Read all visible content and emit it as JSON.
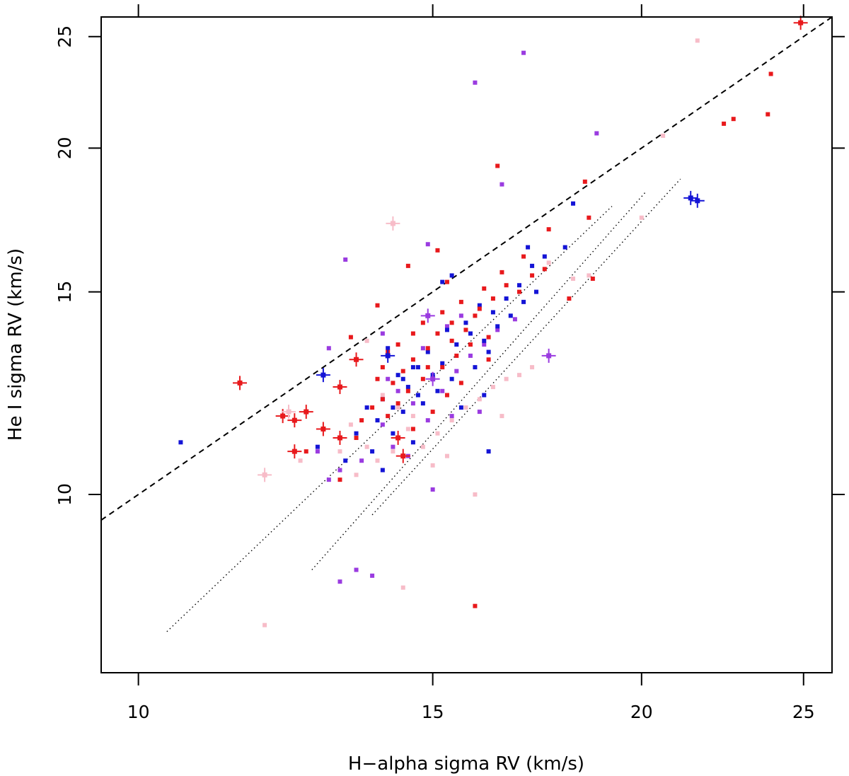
{
  "chart_data": {
    "type": "scatter",
    "xlabel": "H−alpha sigma RV (km/s)",
    "ylabel": "He I sigma RV (km/s)",
    "x_scale": "log",
    "y_scale": "log",
    "xlim": [
      9.5,
      26
    ],
    "ylim": [
      7.0,
      26
    ],
    "x_ticks": [
      10,
      15,
      20,
      25
    ],
    "y_ticks": [
      10,
      15,
      20,
      25
    ],
    "x_tick_labels": [
      "10",
      "15",
      "20",
      "25"
    ],
    "y_tick_labels": [
      "10",
      "15",
      "20",
      "25"
    ],
    "grid": false,
    "colors": {
      "red": "#e8191c",
      "blue": "#1414d6",
      "purple": "#9a3be0",
      "pink": "#f7bcc8",
      "line": "#000000"
    },
    "reference_lines": [
      {
        "name": "one-to-one",
        "style": "dashed",
        "from": [
          9.5,
          9.5
        ],
        "to": [
          26,
          26
        ]
      },
      {
        "name": "lower-1",
        "style": "dotted",
        "from": [
          10.4,
          7.6
        ],
        "to": [
          19.2,
          17.8
        ]
      },
      {
        "name": "lower-2",
        "style": "dotted",
        "from": [
          12.7,
          8.6
        ],
        "to": [
          20.1,
          18.3
        ]
      },
      {
        "name": "lower-3",
        "style": "dotted",
        "from": [
          13.8,
          9.6
        ],
        "to": [
          21.1,
          18.8
        ]
      }
    ],
    "series": [
      {
        "name": "red",
        "color": "#e8191c",
        "points": [
          [
            13.9,
            14.6
          ],
          [
            14.1,
            13.3
          ],
          [
            14.3,
            13.5
          ],
          [
            14.6,
            13.8
          ],
          [
            14.8,
            14.1
          ],
          [
            15.2,
            14.4
          ],
          [
            15.6,
            14.7
          ],
          [
            16.1,
            15.1
          ],
          [
            16.5,
            15.6
          ],
          [
            17.0,
            16.1
          ],
          [
            17.6,
            17.0
          ],
          [
            18.6,
            17.4
          ],
          [
            18.5,
            18.7
          ],
          [
            16.4,
            19.3
          ],
          [
            15.1,
            16.3
          ],
          [
            14.5,
            15.8
          ],
          [
            15.3,
            15.3
          ],
          [
            13.4,
            13.7
          ],
          [
            13.9,
            12.6
          ],
          [
            14.0,
            12.9
          ],
          [
            14.2,
            12.5
          ],
          [
            14.4,
            12.8
          ],
          [
            14.6,
            13.1
          ],
          [
            14.9,
            13.4
          ],
          [
            15.1,
            13.8
          ],
          [
            15.4,
            13.6
          ],
          [
            15.7,
            13.9
          ],
          [
            15.9,
            14.3
          ],
          [
            16.3,
            14.8
          ],
          [
            16.6,
            15.2
          ],
          [
            16.9,
            15.0
          ],
          [
            17.2,
            15.5
          ],
          [
            17.5,
            15.7
          ],
          [
            18.1,
            14.8
          ],
          [
            18.7,
            15.4
          ],
          [
            22.4,
            21.0
          ],
          [
            22.7,
            21.2
          ],
          [
            23.8,
            21.4
          ],
          [
            23.9,
            23.2
          ],
          [
            14.0,
            12.1
          ],
          [
            14.3,
            12.0
          ],
          [
            14.5,
            12.3
          ],
          [
            14.8,
            12.6
          ],
          [
            15.2,
            12.9
          ],
          [
            15.5,
            13.2
          ],
          [
            15.8,
            13.5
          ],
          [
            16.2,
            13.7
          ],
          [
            13.6,
            11.6
          ],
          [
            13.8,
            11.9
          ],
          [
            14.1,
            11.7
          ],
          [
            14.6,
            11.4
          ],
          [
            15.0,
            11.8
          ],
          [
            15.3,
            12.2
          ],
          [
            15.6,
            12.5
          ],
          [
            12.6,
            10.9
          ],
          [
            13.2,
            10.3
          ],
          [
            13.5,
            11.2
          ],
          [
            14.9,
            12.9
          ],
          [
            15.4,
            14.1
          ],
          [
            16.0,
            14.5
          ],
          [
            16.2,
            13.1
          ],
          [
            15.9,
            8.0
          ]
        ]
      },
      {
        "name": "blue",
        "color": "#1414d6",
        "points": [
          [
            14.1,
            13.4
          ],
          [
            14.4,
            12.6
          ],
          [
            14.6,
            12.9
          ],
          [
            14.9,
            13.3
          ],
          [
            15.3,
            13.9
          ],
          [
            15.7,
            14.1
          ],
          [
            16.0,
            14.6
          ],
          [
            16.3,
            14.4
          ],
          [
            16.6,
            14.8
          ],
          [
            16.9,
            15.2
          ],
          [
            17.2,
            15.8
          ],
          [
            17.5,
            16.1
          ],
          [
            18.0,
            16.4
          ],
          [
            18.2,
            17.9
          ],
          [
            14.0,
            12.1
          ],
          [
            14.2,
            11.9
          ],
          [
            14.5,
            12.4
          ],
          [
            14.7,
            12.2
          ],
          [
            15.0,
            12.7
          ],
          [
            15.2,
            13.0
          ],
          [
            15.5,
            13.5
          ],
          [
            15.8,
            13.8
          ],
          [
            16.1,
            13.6
          ],
          [
            16.4,
            14.0
          ],
          [
            16.7,
            14.3
          ],
          [
            17.0,
            14.7
          ],
          [
            17.3,
            15.0
          ],
          [
            13.7,
            11.9
          ],
          [
            13.9,
            11.6
          ],
          [
            14.2,
            11.3
          ],
          [
            14.4,
            11.8
          ],
          [
            14.8,
            12.0
          ],
          [
            15.1,
            12.3
          ],
          [
            15.4,
            12.6
          ],
          [
            15.9,
            12.9
          ],
          [
            16.2,
            13.3
          ],
          [
            13.5,
            11.3
          ],
          [
            13.8,
            10.9
          ],
          [
            14.6,
            11.1
          ],
          [
            15.6,
            11.9
          ],
          [
            16.1,
            12.2
          ],
          [
            17.1,
            16.4
          ],
          [
            15.4,
            15.5
          ],
          [
            15.2,
            15.3
          ],
          [
            12.8,
            11.0
          ],
          [
            13.3,
            10.7
          ],
          [
            14.0,
            10.5
          ],
          [
            16.2,
            10.9
          ],
          [
            14.7,
            12.9
          ],
          [
            14.3,
            12.7
          ],
          [
            10.6,
            11.1
          ]
        ]
      },
      {
        "name": "purple",
        "color": "#9a3be0",
        "points": [
          [
            17.0,
            24.2
          ],
          [
            15.9,
            22.8
          ],
          [
            18.8,
            20.6
          ],
          [
            16.5,
            18.6
          ],
          [
            14.9,
            16.5
          ],
          [
            13.3,
            16.0
          ],
          [
            14.0,
            13.8
          ],
          [
            13.0,
            13.4
          ],
          [
            14.3,
            12.3
          ],
          [
            14.6,
            12.0
          ],
          [
            14.9,
            11.6
          ],
          [
            15.2,
            12.3
          ],
          [
            15.5,
            12.8
          ],
          [
            15.8,
            13.2
          ],
          [
            16.1,
            13.5
          ],
          [
            16.4,
            13.9
          ],
          [
            16.8,
            14.2
          ],
          [
            14.0,
            11.5
          ],
          [
            14.2,
            11.0
          ],
          [
            13.6,
            10.7
          ],
          [
            13.2,
            10.5
          ],
          [
            12.8,
            10.9
          ],
          [
            13.0,
            10.3
          ],
          [
            14.5,
            10.8
          ],
          [
            15.0,
            10.1
          ],
          [
            14.1,
            12.6
          ],
          [
            14.8,
            13.4
          ],
          [
            15.3,
            14.0
          ],
          [
            15.6,
            14.3
          ],
          [
            13.8,
            8.5
          ],
          [
            13.5,
            8.6
          ],
          [
            13.2,
            8.4
          ],
          [
            16.0,
            11.8
          ],
          [
            15.4,
            11.7
          ]
        ]
      },
      {
        "name": "pink",
        "color": "#f7bcc8",
        "points": [
          [
            21.6,
            24.8
          ],
          [
            20.6,
            20.5
          ],
          [
            20.0,
            17.4
          ],
          [
            17.6,
            15.9
          ],
          [
            18.2,
            15.4
          ],
          [
            18.6,
            15.5
          ],
          [
            13.7,
            13.6
          ],
          [
            14.0,
            12.2
          ],
          [
            14.3,
            11.9
          ],
          [
            14.5,
            11.4
          ],
          [
            14.8,
            11.0
          ],
          [
            15.1,
            11.3
          ],
          [
            15.4,
            11.6
          ],
          [
            15.7,
            11.9
          ],
          [
            16.0,
            12.1
          ],
          [
            16.3,
            12.4
          ],
          [
            16.6,
            12.6
          ],
          [
            16.9,
            12.7
          ],
          [
            17.2,
            12.9
          ],
          [
            13.4,
            11.5
          ],
          [
            13.7,
            11.0
          ],
          [
            13.5,
            10.4
          ],
          [
            13.9,
            10.7
          ],
          [
            14.2,
            10.9
          ],
          [
            15.0,
            10.6
          ],
          [
            15.3,
            10.8
          ],
          [
            16.5,
            11.7
          ],
          [
            15.9,
            10.0
          ],
          [
            12.5,
            10.7
          ],
          [
            11.9,
            7.7
          ],
          [
            14.4,
            8.3
          ],
          [
            13.2,
            10.9
          ],
          [
            14.6,
            11.7
          ]
        ]
      }
    ],
    "error_markers": [
      {
        "x": 24.9,
        "y": 25.7,
        "color": "#e8191c"
      },
      {
        "x": 11.5,
        "y": 12.5,
        "color": "#e8191c"
      },
      {
        "x": 12.2,
        "y": 11.7,
        "color": "#e8191c"
      },
      {
        "x": 12.4,
        "y": 11.6,
        "color": "#e8191c"
      },
      {
        "x": 12.6,
        "y": 11.8,
        "color": "#e8191c"
      },
      {
        "x": 12.9,
        "y": 11.4,
        "color": "#e8191c"
      },
      {
        "x": 12.4,
        "y": 10.9,
        "color": "#e8191c"
      },
      {
        "x": 13.2,
        "y": 11.2,
        "color": "#e8191c"
      },
      {
        "x": 13.2,
        "y": 12.4,
        "color": "#e8191c"
      },
      {
        "x": 13.5,
        "y": 13.1,
        "color": "#e8191c"
      },
      {
        "x": 14.3,
        "y": 11.2,
        "color": "#e8191c"
      },
      {
        "x": 14.4,
        "y": 10.8,
        "color": "#e8191c"
      },
      {
        "x": 12.9,
        "y": 12.7,
        "color": "#1414d6"
      },
      {
        "x": 14.1,
        "y": 13.2,
        "color": "#1414d6"
      },
      {
        "x": 21.4,
        "y": 18.1,
        "color": "#1414d6"
      },
      {
        "x": 21.6,
        "y": 18.0,
        "color": "#1414d6"
      },
      {
        "x": 14.9,
        "y": 14.3,
        "color": "#9a3be0"
      },
      {
        "x": 17.6,
        "y": 13.2,
        "color": "#9a3be0"
      },
      {
        "x": 15.0,
        "y": 12.6,
        "color": "#9a3be0"
      },
      {
        "x": 14.2,
        "y": 17.2,
        "color": "#f7bcc8"
      },
      {
        "x": 11.9,
        "y": 10.4,
        "color": "#f7bcc8"
      },
      {
        "x": 12.3,
        "y": 11.8,
        "color": "#f7bcc8"
      }
    ]
  }
}
